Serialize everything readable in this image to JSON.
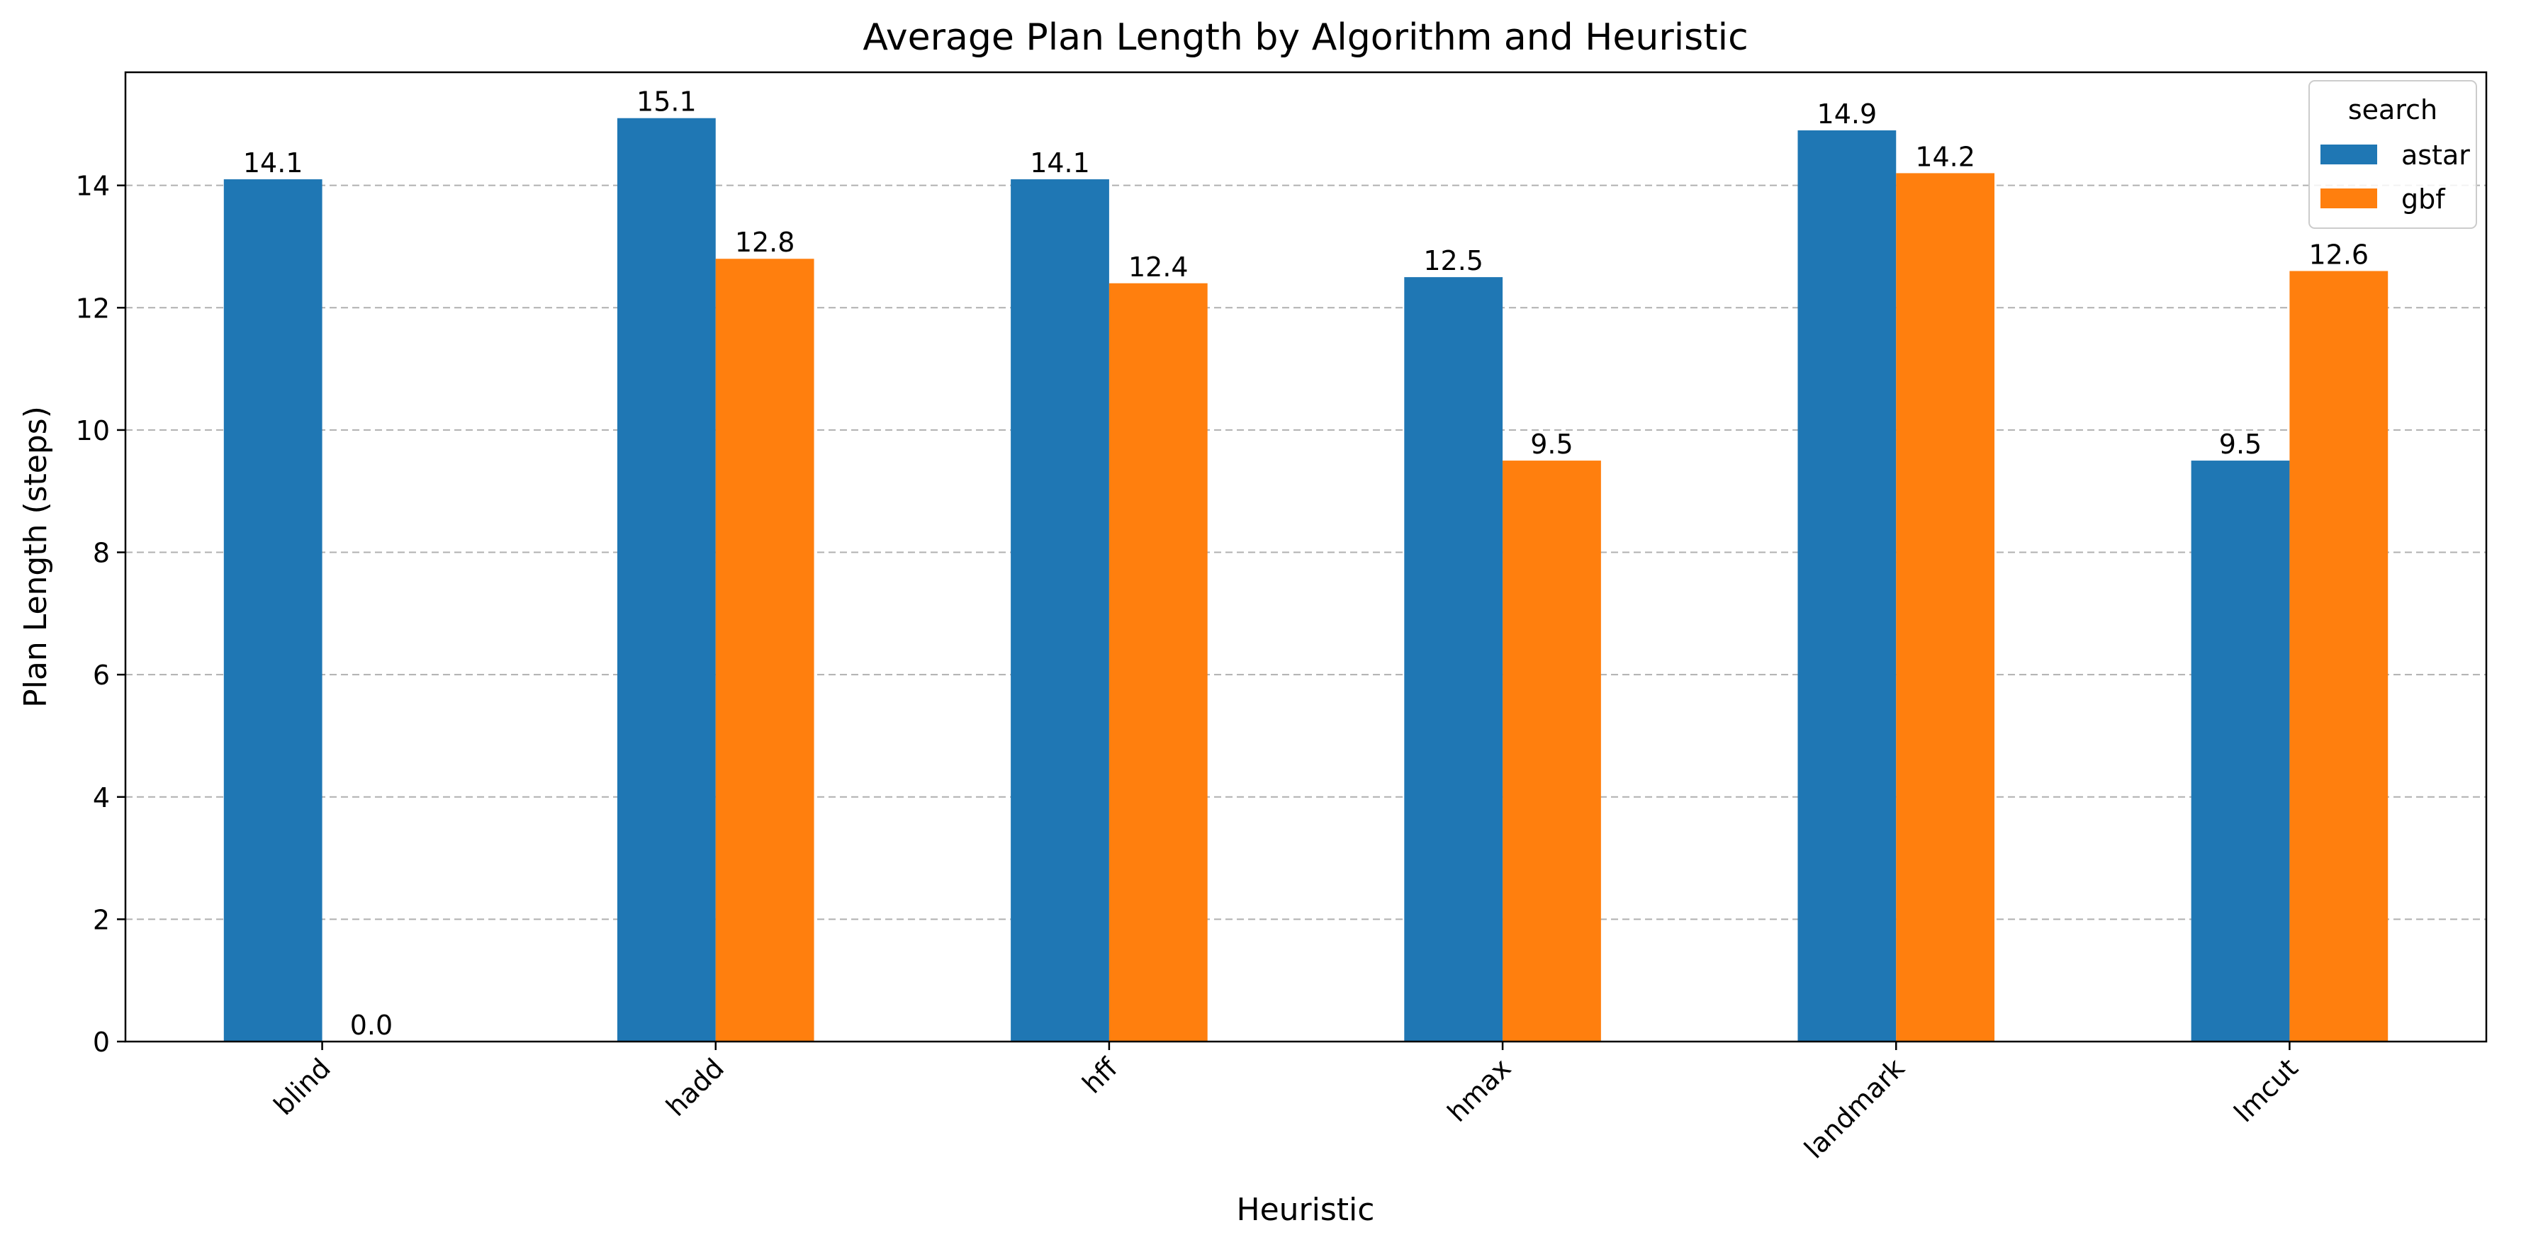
{
  "chart_data": {
    "type": "bar",
    "title": "Average Plan Length by Algorithm and Heuristic",
    "xlabel": "Heuristic",
    "ylabel": "Plan Length (steps)",
    "categories": [
      "blind",
      "hadd",
      "hff",
      "hmax",
      "landmark",
      "lmcut"
    ],
    "series": [
      {
        "name": "astar",
        "color": "#1f77b4",
        "values": [
          14.1,
          15.1,
          14.1,
          12.5,
          14.9,
          9.5
        ],
        "labels": [
          "14.1",
          "15.1",
          "14.1",
          "12.5",
          "14.9",
          "9.5"
        ]
      },
      {
        "name": "gbf",
        "color": "#ff7f0e",
        "values": [
          0.0,
          12.8,
          12.4,
          9.5,
          14.2,
          12.6
        ],
        "labels": [
          "0.0",
          "12.8",
          "12.4",
          "9.5",
          "14.2",
          "12.6"
        ]
      }
    ],
    "ylim": [
      0,
      15.85
    ],
    "yticks": [
      0,
      2,
      4,
      6,
      8,
      10,
      12,
      14
    ],
    "ytick_labels": [
      "0",
      "2",
      "4",
      "6",
      "8",
      "10",
      "12",
      "14"
    ],
    "grid": "y-dashed",
    "legend": {
      "title": "search",
      "placement": "top-right"
    },
    "xtick_rotation": 45
  }
}
